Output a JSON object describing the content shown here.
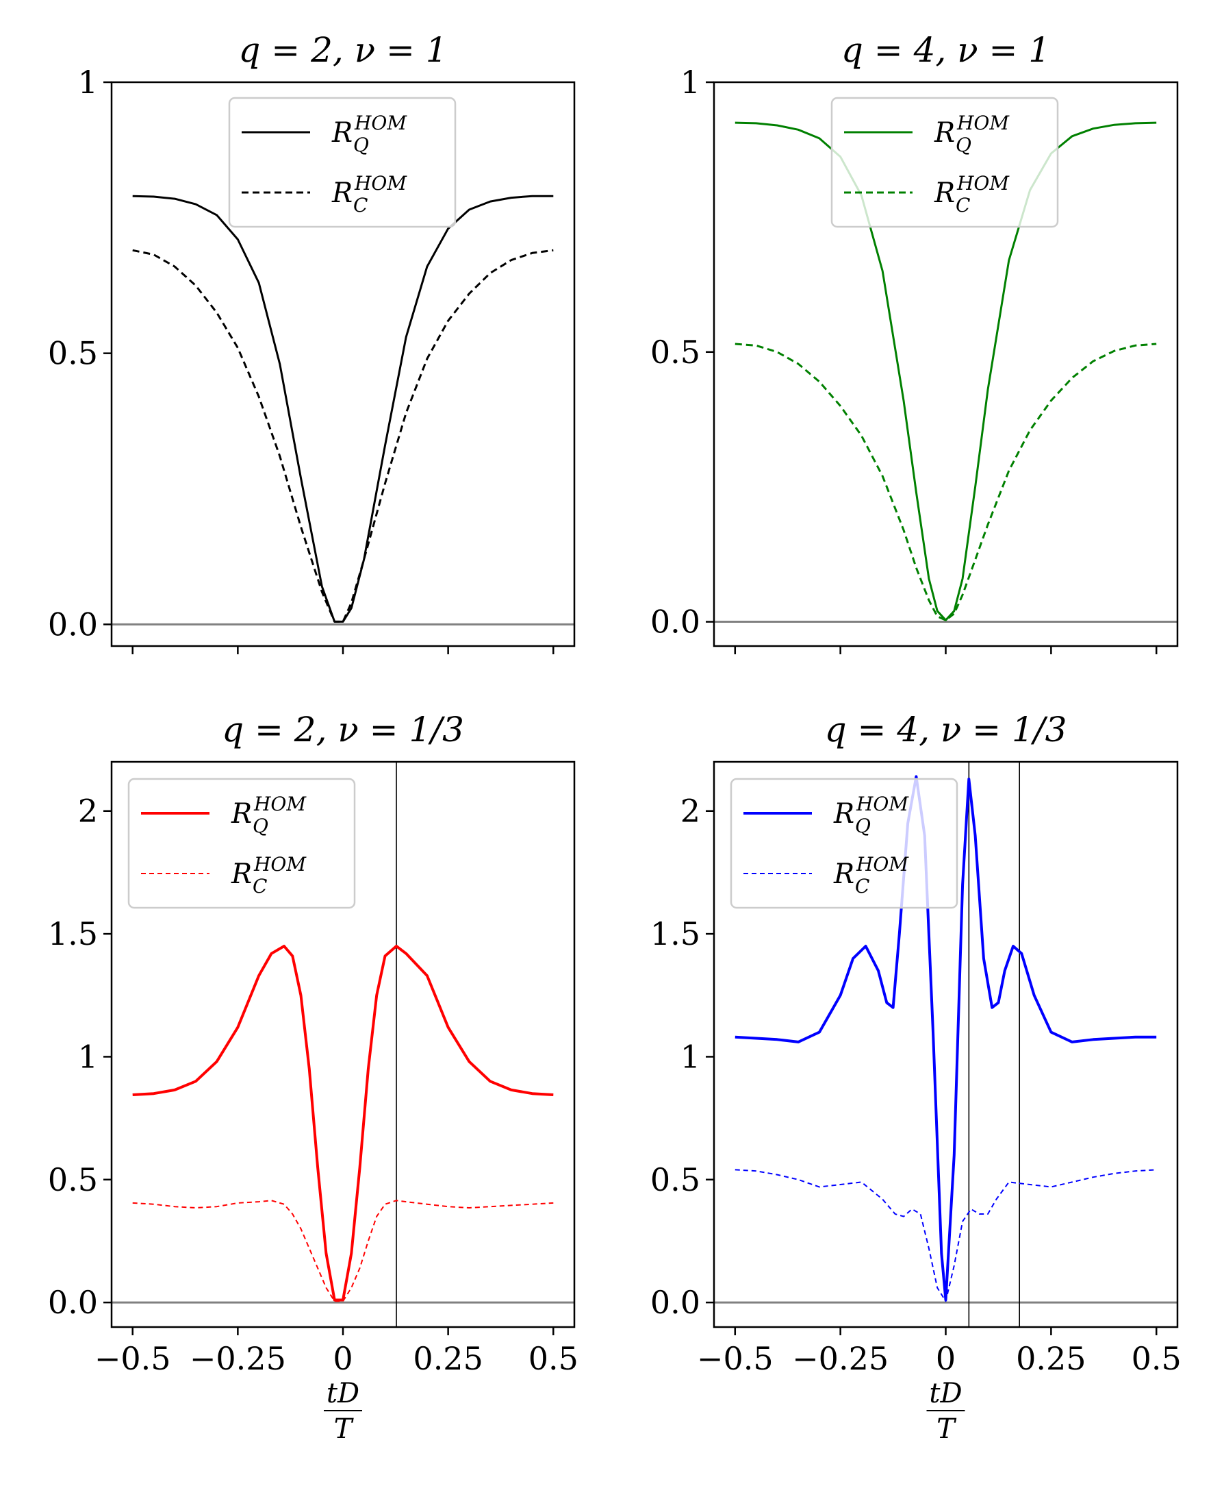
{
  "chart_data": [
    {
      "type": "line",
      "panel": "top-left",
      "title": "q = 2, ν = 1",
      "xlabel": "",
      "ylabel": "",
      "xlim": [
        -0.55,
        0.55
      ],
      "ylim": [
        -0.04,
        1.0
      ],
      "xticks": [
        -0.5,
        -0.25,
        0,
        0.25,
        0.5
      ],
      "xtick_labels": [],
      "yticks": [
        0,
        0.5,
        1
      ],
      "ytick_labels": [
        "0.0",
        "0.5",
        "1"
      ],
      "hlines": [
        0
      ],
      "vlines": [],
      "legend": "upper-center",
      "series": [
        {
          "name": "R_Q^HOM",
          "color": "#000000",
          "dash": "solid",
          "width": 3,
          "x": [
            -0.5,
            -0.45,
            -0.4,
            -0.35,
            -0.3,
            -0.25,
            -0.2,
            -0.15,
            -0.1,
            -0.05,
            -0.02,
            0,
            0.02,
            0.05,
            0.1,
            0.15,
            0.2,
            0.25,
            0.3,
            0.35,
            0.4,
            0.45,
            0.5
          ],
          "y": [
            0.79,
            0.789,
            0.785,
            0.775,
            0.755,
            0.71,
            0.63,
            0.48,
            0.27,
            0.07,
            0.005,
            0.005,
            0.03,
            0.12,
            0.33,
            0.53,
            0.66,
            0.73,
            0.765,
            0.78,
            0.787,
            0.79,
            0.79
          ]
        },
        {
          "name": "R_C^HOM",
          "color": "#000000",
          "dash": "10,6",
          "width": 3,
          "x": [
            -0.5,
            -0.45,
            -0.4,
            -0.35,
            -0.3,
            -0.25,
            -0.2,
            -0.15,
            -0.1,
            -0.05,
            -0.02,
            0,
            0.02,
            0.05,
            0.1,
            0.15,
            0.2,
            0.25,
            0.3,
            0.35,
            0.4,
            0.45,
            0.5
          ],
          "y": [
            0.69,
            0.682,
            0.66,
            0.625,
            0.575,
            0.51,
            0.42,
            0.31,
            0.18,
            0.06,
            0.005,
            0.005,
            0.04,
            0.12,
            0.26,
            0.39,
            0.49,
            0.56,
            0.61,
            0.648,
            0.672,
            0.685,
            0.69
          ]
        }
      ]
    },
    {
      "type": "line",
      "panel": "top-right",
      "title": "q = 4, ν = 1",
      "xlabel": "",
      "ylabel": "",
      "xlim": [
        -0.55,
        0.55
      ],
      "ylim": [
        -0.045,
        1.0
      ],
      "xticks": [
        -0.5,
        -0.25,
        0,
        0.25,
        0.5
      ],
      "xtick_labels": [],
      "yticks": [
        0,
        0.5,
        1
      ],
      "ytick_labels": [
        "0.0",
        "0.5",
        "1"
      ],
      "hlines": [
        0
      ],
      "vlines": [],
      "legend": "upper-center",
      "series": [
        {
          "name": "R_Q^HOM",
          "color": "#008000",
          "dash": "solid",
          "width": 3,
          "x": [
            -0.5,
            -0.45,
            -0.4,
            -0.35,
            -0.3,
            -0.25,
            -0.2,
            -0.15,
            -0.1,
            -0.07,
            -0.04,
            -0.02,
            0,
            0.02,
            0.04,
            0.07,
            0.1,
            0.15,
            0.2,
            0.25,
            0.3,
            0.35,
            0.4,
            0.45,
            0.5
          ],
          "y": [
            0.925,
            0.924,
            0.92,
            0.912,
            0.896,
            0.862,
            0.79,
            0.65,
            0.41,
            0.24,
            0.08,
            0.02,
            0.003,
            0.02,
            0.08,
            0.25,
            0.43,
            0.67,
            0.8,
            0.868,
            0.9,
            0.914,
            0.921,
            0.924,
            0.925
          ]
        },
        {
          "name": "R_C^HOM",
          "color": "#008000",
          "dash": "10,6",
          "width": 3,
          "x": [
            -0.5,
            -0.45,
            -0.4,
            -0.35,
            -0.3,
            -0.25,
            -0.2,
            -0.15,
            -0.1,
            -0.07,
            -0.04,
            -0.02,
            0,
            0.02,
            0.04,
            0.07,
            0.1,
            0.15,
            0.2,
            0.25,
            0.3,
            0.35,
            0.4,
            0.45,
            0.5
          ],
          "y": [
            0.515,
            0.512,
            0.5,
            0.478,
            0.445,
            0.4,
            0.345,
            0.27,
            0.17,
            0.1,
            0.04,
            0.01,
            0.003,
            0.015,
            0.05,
            0.115,
            0.18,
            0.28,
            0.355,
            0.41,
            0.452,
            0.483,
            0.502,
            0.512,
            0.515
          ]
        }
      ]
    },
    {
      "type": "line",
      "panel": "bottom-left",
      "title": "q = 2, ν = 1/3",
      "xlabel": "tD / T",
      "ylabel": "",
      "xlim": [
        -0.55,
        0.55
      ],
      "ylim": [
        -0.1,
        2.2
      ],
      "xticks": [
        -0.5,
        -0.25,
        0,
        0.25,
        0.5
      ],
      "xtick_labels": [
        "−0.5",
        "−0.25",
        "0",
        "0.25",
        "0.5"
      ],
      "yticks": [
        0,
        0.5,
        1,
        1.5,
        2
      ],
      "ytick_labels": [
        "0.0",
        "0.5",
        "1",
        "1.5",
        "2"
      ],
      "hlines": [
        0
      ],
      "vlines": [
        0.127
      ],
      "legend": "upper-left",
      "series": [
        {
          "name": "R_Q^HOM",
          "color": "#ff0000",
          "dash": "solid",
          "width": 4,
          "x": [
            -0.5,
            -0.45,
            -0.4,
            -0.35,
            -0.3,
            -0.25,
            -0.2,
            -0.17,
            -0.14,
            -0.12,
            -0.1,
            -0.08,
            -0.06,
            -0.04,
            -0.02,
            0,
            0.02,
            0.04,
            0.06,
            0.08,
            0.1,
            0.127,
            0.15,
            0.2,
            0.25,
            0.3,
            0.35,
            0.4,
            0.45,
            0.5
          ],
          "y": [
            0.845,
            0.85,
            0.865,
            0.9,
            0.98,
            1.12,
            1.33,
            1.42,
            1.45,
            1.41,
            1.25,
            0.95,
            0.55,
            0.2,
            0.01,
            0.01,
            0.2,
            0.55,
            0.95,
            1.25,
            1.41,
            1.45,
            1.42,
            1.33,
            1.12,
            0.98,
            0.9,
            0.865,
            0.85,
            0.845
          ]
        },
        {
          "name": "R_C^HOM",
          "color": "#ff0000",
          "dash": "7,5",
          "width": 2,
          "x": [
            -0.5,
            -0.45,
            -0.4,
            -0.35,
            -0.3,
            -0.25,
            -0.2,
            -0.17,
            -0.14,
            -0.12,
            -0.1,
            -0.08,
            -0.06,
            -0.04,
            -0.02,
            0,
            0.02,
            0.04,
            0.06,
            0.08,
            0.1,
            0.127,
            0.15,
            0.2,
            0.25,
            0.3,
            0.35,
            0.4,
            0.45,
            0.5
          ],
          "y": [
            0.405,
            0.4,
            0.39,
            0.385,
            0.39,
            0.405,
            0.41,
            0.415,
            0.4,
            0.36,
            0.3,
            0.22,
            0.14,
            0.06,
            0.005,
            0.005,
            0.06,
            0.14,
            0.25,
            0.35,
            0.4,
            0.415,
            0.41,
            0.4,
            0.39,
            0.385,
            0.39,
            0.395,
            0.4,
            0.405
          ]
        }
      ]
    },
    {
      "type": "line",
      "panel": "bottom-right",
      "title": "q = 4, ν = 1/3",
      "xlabel": "tD / T",
      "ylabel": "",
      "xlim": [
        -0.55,
        0.55
      ],
      "ylim": [
        -0.1,
        2.2
      ],
      "xticks": [
        -0.5,
        -0.25,
        0,
        0.25,
        0.5
      ],
      "xtick_labels": [
        "−0.5",
        "−0.25",
        "0",
        "0.25",
        "0.5"
      ],
      "yticks": [
        0,
        0.5,
        1,
        1.5,
        2
      ],
      "ytick_labels": [
        "0.0",
        "0.5",
        "1",
        "1.5",
        "2"
      ],
      "hlines": [
        0
      ],
      "vlines": [
        0.055,
        0.175
      ],
      "legend": "upper-left",
      "series": [
        {
          "name": "R_Q^HOM",
          "color": "#0000ff",
          "dash": "solid",
          "width": 4,
          "x": [
            -0.5,
            -0.45,
            -0.4,
            -0.35,
            -0.3,
            -0.25,
            -0.22,
            -0.19,
            -0.16,
            -0.14,
            -0.125,
            -0.11,
            -0.09,
            -0.07,
            -0.05,
            -0.03,
            -0.01,
            0,
            0.02,
            0.04,
            0.055,
            0.07,
            0.09,
            0.11,
            0.125,
            0.14,
            0.16,
            0.18,
            0.21,
            0.25,
            0.3,
            0.35,
            0.4,
            0.45,
            0.5
          ],
          "y": [
            1.08,
            1.075,
            1.07,
            1.06,
            1.1,
            1.25,
            1.4,
            1.45,
            1.35,
            1.22,
            1.2,
            1.5,
            1.95,
            2.14,
            1.9,
            1.1,
            0.2,
            0.01,
            0.6,
            1.7,
            2.13,
            1.9,
            1.4,
            1.2,
            1.22,
            1.35,
            1.45,
            1.42,
            1.25,
            1.1,
            1.06,
            1.07,
            1.075,
            1.08,
            1.08
          ]
        },
        {
          "name": "R_C^HOM",
          "color": "#0000ff",
          "dash": "7,5",
          "width": 2,
          "x": [
            -0.5,
            -0.45,
            -0.4,
            -0.35,
            -0.3,
            -0.25,
            -0.2,
            -0.15,
            -0.12,
            -0.1,
            -0.08,
            -0.06,
            -0.04,
            -0.02,
            0,
            0.02,
            0.04,
            0.06,
            0.08,
            0.1,
            0.12,
            0.15,
            0.2,
            0.25,
            0.3,
            0.35,
            0.4,
            0.45,
            0.5
          ],
          "y": [
            0.54,
            0.535,
            0.52,
            0.5,
            0.47,
            0.48,
            0.49,
            0.42,
            0.36,
            0.35,
            0.38,
            0.36,
            0.22,
            0.06,
            0.005,
            0.15,
            0.33,
            0.38,
            0.36,
            0.36,
            0.42,
            0.49,
            0.48,
            0.47,
            0.49,
            0.51,
            0.525,
            0.535,
            0.54
          ]
        }
      ]
    }
  ]
}
